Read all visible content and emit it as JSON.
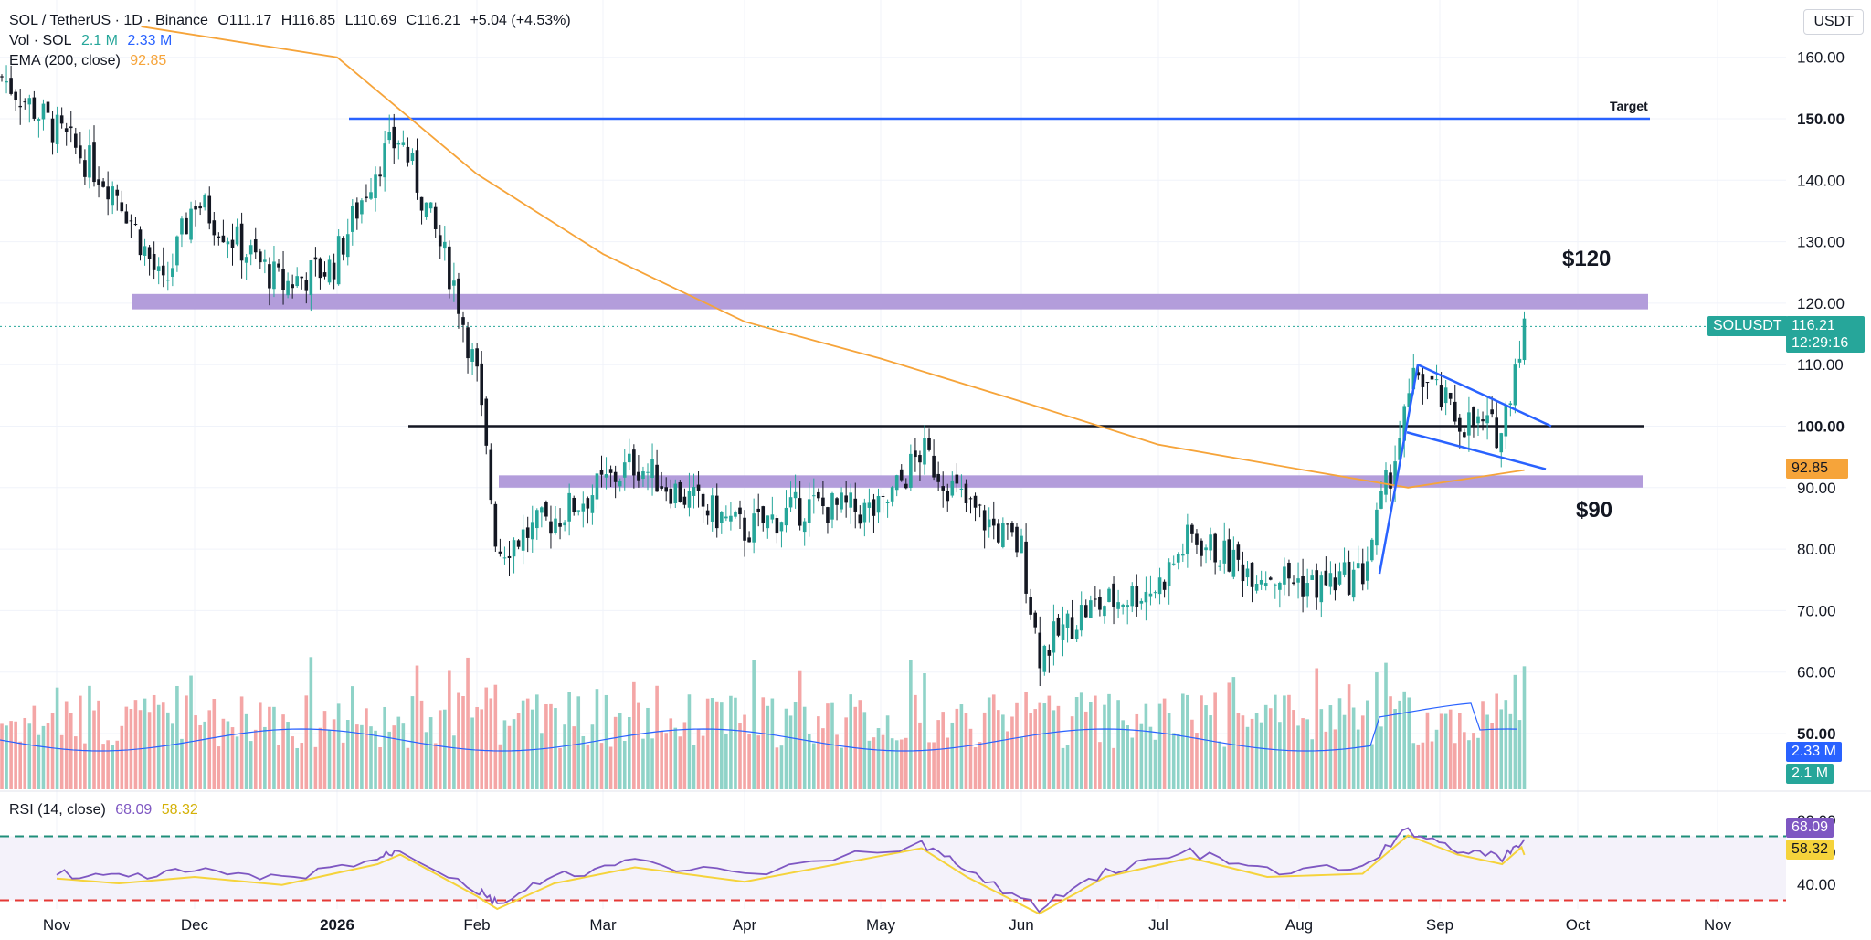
{
  "header": {
    "symbol": "SOL / TetherUS · 1D · Binance",
    "open": "O111.17",
    "high": "H116.85",
    "low": "L110.69",
    "close": "C116.21",
    "change": "+5.04 (+4.53%)",
    "vol_label": "Vol · SOL",
    "vol_value": "2.1 M",
    "vol_ma": "2.33 M",
    "ema_label": "EMA (200, close)",
    "ema_value": "92.85",
    "currency": "USDT"
  },
  "rsi": {
    "label": "RSI (14, close)",
    "value": "68.09",
    "ma_value": "58.32",
    "ticks": [
      "80.00",
      "60.00",
      "40.00"
    ]
  },
  "price_tags": {
    "symbol": "SOLUSDT",
    "last": "116.21",
    "countdown": "12:29:16",
    "ema": "92.85",
    "vol_ma": "2.33 M",
    "vol": "2.1 M"
  },
  "annotations": {
    "target": "Target",
    "upper_zone": "$120",
    "lower_zone": "$90"
  },
  "colors": {
    "up": "#26a69a",
    "down": "#131722",
    "ema": "#f6a43a",
    "zone": "#b39ddb",
    "trendline": "#2962ff",
    "rsi": "#7e57c2",
    "rsi_ma": "#f5d33b"
  },
  "chart_data": {
    "type": "candlestick",
    "title": "SOL / TetherUS · 1D · Binance",
    "ylabel": "USDT",
    "y_ticks": [
      160,
      150,
      140,
      130,
      120,
      110,
      100,
      90,
      80,
      70,
      60,
      50
    ],
    "ylim": [
      40,
      165
    ],
    "x_ticks": [
      "Nov",
      "Dec",
      "2026",
      "Feb",
      "Mar",
      "Apr",
      "May",
      "Jun",
      "Jul",
      "Aug",
      "Sep",
      "Oct",
      "Nov"
    ],
    "close_path": [
      {
        "x": "Nov",
        "y": 148
      },
      {
        "x": "Nov 15",
        "y": 138
      },
      {
        "x": "Nov 25",
        "y": 122
      },
      {
        "x": "Dec",
        "y": 137
      },
      {
        "x": "Dec 10",
        "y": 130
      },
      {
        "x": "Dec 20",
        "y": 123
      },
      {
        "x": "Dec 31",
        "y": 126
      },
      {
        "x": "Jan 10",
        "y": 143
      },
      {
        "x": "Jan 15",
        "y": 147
      },
      {
        "x": "Jan 22",
        "y": 133
      },
      {
        "x": "Jan 27",
        "y": 123
      },
      {
        "x": "Feb",
        "y": 108
      },
      {
        "x": "Feb 6",
        "y": 80
      },
      {
        "x": "Feb 20",
        "y": 85
      },
      {
        "x": "Mar 8",
        "y": 94
      },
      {
        "x": "Mar 20",
        "y": 88
      },
      {
        "x": "Apr 1",
        "y": 83
      },
      {
        "x": "Apr 15",
        "y": 87
      },
      {
        "x": "May 1",
        "y": 86
      },
      {
        "x": "May 10",
        "y": 96
      },
      {
        "x": "May 20",
        "y": 87
      },
      {
        "x": "Jun 1",
        "y": 80
      },
      {
        "x": "Jun 5",
        "y": 63
      },
      {
        "x": "Jun 15",
        "y": 70
      },
      {
        "x": "Jul 1",
        "y": 74
      },
      {
        "x": "Jul 8",
        "y": 82
      },
      {
        "x": "Jul 20",
        "y": 77
      },
      {
        "x": "Aug 5",
        "y": 74
      },
      {
        "x": "Aug 15",
        "y": 76
      },
      {
        "x": "Aug 22",
        "y": 95
      },
      {
        "x": "Aug 27",
        "y": 109
      },
      {
        "x": "Sep 5",
        "y": 101
      },
      {
        "x": "Sep 15",
        "y": 99
      },
      {
        "x": "Sep 18",
        "y": 111
      },
      {
        "x": "Sep 20",
        "y": 116.21
      }
    ],
    "ema200": [
      {
        "x": "Nov 20",
        "y": 165
      },
      {
        "x": "Jan 1",
        "y": 160
      },
      {
        "x": "Feb 1",
        "y": 141
      },
      {
        "x": "Mar 1",
        "y": 128
      },
      {
        "x": "Apr 1",
        "y": 117
      },
      {
        "x": "May 1",
        "y": 111
      },
      {
        "x": "Jun 1",
        "y": 104
      },
      {
        "x": "Jul 1",
        "y": 97
      },
      {
        "x": "Aug 1",
        "y": 93
      },
      {
        "x": "Aug 25",
        "y": 90
      },
      {
        "x": "Sep 20",
        "y": 92.85
      }
    ],
    "levels": [
      {
        "name": "Target",
        "value": 150
      },
      {
        "name": "$120",
        "value_low": 119,
        "value_high": 121.5
      },
      {
        "value": 100
      },
      {
        "name": "$90",
        "value_low": 90,
        "value_high": 92
      }
    ],
    "rsi_ylim": [
      20,
      90
    ],
    "rsi": [
      {
        "x": "Nov",
        "y": 47
      },
      {
        "x": "Nov 15",
        "y": 44
      },
      {
        "x": "Dec 1",
        "y": 48
      },
      {
        "x": "Dec 20",
        "y": 43
      },
      {
        "x": "Jan 10",
        "y": 56
      },
      {
        "x": "Jan 15",
        "y": 62
      },
      {
        "x": "Feb 1",
        "y": 36
      },
      {
        "x": "Feb 6",
        "y": 28
      },
      {
        "x": "Feb 20",
        "y": 44
      },
      {
        "x": "Mar 8",
        "y": 54
      },
      {
        "x": "Apr 1",
        "y": 45
      },
      {
        "x": "May 10",
        "y": 66
      },
      {
        "x": "May 20",
        "y": 48
      },
      {
        "x": "Jun 5",
        "y": 25
      },
      {
        "x": "Jun 20",
        "y": 48
      },
      {
        "x": "Jul 8",
        "y": 60
      },
      {
        "x": "Jul 25",
        "y": 48
      },
      {
        "x": "Aug 15",
        "y": 50
      },
      {
        "x": "Aug 25",
        "y": 74
      },
      {
        "x": "Sep 5",
        "y": 62
      },
      {
        "x": "Sep 15",
        "y": 56
      },
      {
        "x": "Sep 20",
        "y": 68.09
      }
    ],
    "rsi_levels": [
      70,
      30
    ]
  }
}
